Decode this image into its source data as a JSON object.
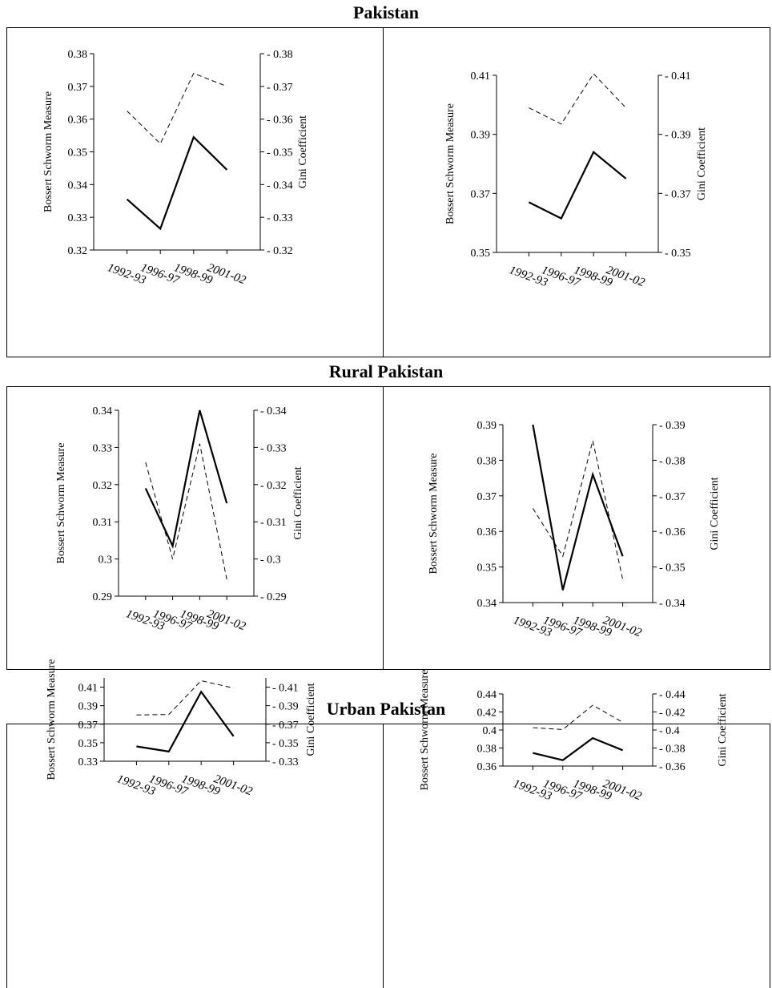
{
  "sections": [
    {
      "title": "Pakistan"
    },
    {
      "title": "Rural Pakistan"
    },
    {
      "title": "Urban Pakistan"
    }
  ],
  "chart_data": [
    {
      "type": "line",
      "section": "Pakistan",
      "categories": [
        "1992-93",
        "1996-97",
        "1998-99",
        "2001-02"
      ],
      "ylabel": "Bossert Schworm Measure",
      "y2label": "Gini Coefficient",
      "ylim": [
        0.32,
        0.38
      ],
      "yticks": [
        0.32,
        0.33,
        0.34,
        0.35,
        0.36,
        0.37,
        0.38
      ],
      "tick_labels": [
        "0.32",
        "0.33",
        "0.34",
        "0.35",
        "0.36",
        "0.37",
        "0.38"
      ],
      "series": [
        {
          "style": "solid",
          "axis": "left",
          "values": [
            0.3355,
            0.3265,
            0.3545,
            0.3445
          ]
        },
        {
          "style": "dashed",
          "axis": "right",
          "values": [
            0.3625,
            0.3525,
            0.374,
            0.37
          ]
        }
      ]
    },
    {
      "type": "line",
      "section": "Pakistan",
      "categories": [
        "1992-93",
        "1996-97",
        "1998-99",
        "2001-02"
      ],
      "ylabel": "Bossert Schworm Measure",
      "y2label": "Gini Coefficient",
      "ylim": [
        0.35,
        0.41
      ],
      "yticks": [
        0.35,
        0.37,
        0.39,
        0.41
      ],
      "tick_labels": [
        "0.35",
        "0.37",
        "0.39",
        "0.41"
      ],
      "series": [
        {
          "style": "solid",
          "axis": "left",
          "values": [
            0.367,
            0.3615,
            0.384,
            0.375
          ]
        },
        {
          "style": "dashed",
          "axis": "right",
          "values": [
            0.399,
            0.3935,
            0.4105,
            0.399
          ]
        }
      ]
    },
    {
      "type": "line",
      "section": "Rural Pakistan",
      "categories": [
        "1992-93",
        "1996-97",
        "1998-99",
        "2001-02"
      ],
      "ylabel": "Bossert Schworm Measure",
      "y2label": "Gini Coefficient",
      "ylim": [
        0.29,
        0.34
      ],
      "yticks": [
        0.29,
        0.3,
        0.31,
        0.32,
        0.33,
        0.34
      ],
      "tick_labels": [
        "0.29",
        "0.3",
        "0.31",
        "0.32",
        "0.33",
        "0.34"
      ],
      "series": [
        {
          "style": "solid",
          "axis": "left",
          "values": [
            0.319,
            0.3035,
            0.34,
            0.315
          ]
        },
        {
          "style": "dashed",
          "axis": "right",
          "values": [
            0.326,
            0.3,
            0.331,
            0.2945
          ]
        }
      ]
    },
    {
      "type": "line",
      "section": "Rural Pakistan",
      "categories": [
        "1992-93",
        "1996-97",
        "1998-99",
        "2001-02"
      ],
      "ylabel": "Bossert Schworm Measure",
      "y2label": "Gini Coefficient",
      "ylim": [
        0.34,
        0.39
      ],
      "yticks": [
        0.34,
        0.35,
        0.36,
        0.37,
        0.38,
        0.39
      ],
      "tick_labels": [
        "0.34",
        "0.35",
        "0.36",
        "0.37",
        "0.38",
        "0.39"
      ],
      "series": [
        {
          "style": "solid",
          "axis": "left",
          "values": [
            0.39,
            0.3435,
            0.376,
            0.353
          ]
        },
        {
          "style": "dashed",
          "axis": "right",
          "values": [
            0.3665,
            0.353,
            0.3855,
            0.3465
          ]
        }
      ]
    },
    {
      "type": "line",
      "section": "Urban Pakistan",
      "categories": [
        "1992-93",
        "1996-97",
        "1998-99",
        "2001-02"
      ],
      "ylabel": "Bossert Schworm Measure",
      "y2label": "Gini Coefficient",
      "ylim": [
        0.33,
        0.42
      ],
      "yticks": [
        0.33,
        0.35,
        0.37,
        0.39,
        0.41
      ],
      "tick_labels": [
        "0.33",
        "0.35",
        "0.37",
        "0.39",
        "0.41"
      ],
      "series": [
        {
          "style": "solid",
          "axis": "left",
          "values": [
            0.346,
            0.3405,
            0.405,
            0.357
          ]
        },
        {
          "style": "dashed",
          "axis": "right",
          "values": [
            0.38,
            0.3805,
            0.417,
            0.409
          ]
        }
      ]
    },
    {
      "type": "line",
      "section": "Urban Pakistan",
      "categories": [
        "1992-93",
        "1996-97",
        "1998-99",
        "2001-02"
      ],
      "ylabel": "Bossert Schworm Measure",
      "y2label": "Gini Coefficient",
      "ylim": [
        0.36,
        0.44
      ],
      "yticks": [
        0.36,
        0.38,
        0.4,
        0.42,
        0.44
      ],
      "tick_labels": [
        "0.36",
        "0.38",
        "0.4",
        "0.42",
        "0.44"
      ],
      "series": [
        {
          "style": "solid",
          "axis": "left",
          "values": [
            0.3745,
            0.3665,
            0.391,
            0.3775
          ]
        },
        {
          "style": "dashed",
          "axis": "right",
          "values": [
            0.4025,
            0.4005,
            0.4275,
            0.4085
          ]
        }
      ]
    }
  ]
}
